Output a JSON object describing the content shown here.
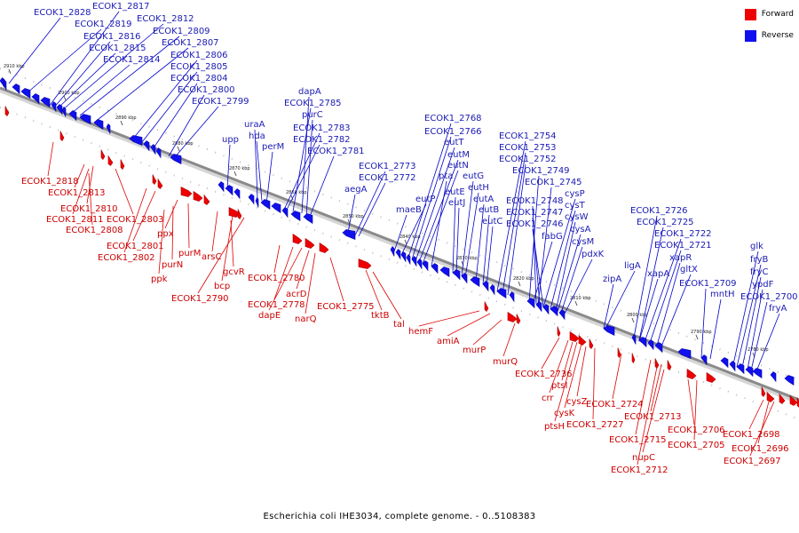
{
  "legend": {
    "forward_label": "Forward",
    "reverse_label": "Reverse",
    "forward_color": "#ee0000",
    "reverse_color": "#1010ee"
  },
  "caption": "Escherichia coli IHE3034, complete genome. - 0..5108383",
  "axis": {
    "backbone_color": "#8a8a8a",
    "ticks": [
      "2910 kbp",
      "2900 kbp",
      "2890 kbp",
      "2880 kbp",
      "2870 kbp",
      "2860 kbp",
      "2850 kbp",
      "2840 kbp",
      "2830 kbp",
      "2820 kbp",
      "2810 kbp",
      "2800 kbp",
      "2790 kbp",
      "2780 kbp"
    ]
  },
  "reverse_genes": [
    "ECOK1_2828",
    "ECOK1_2817",
    "ECOK1_2819",
    "ECOK1_2812",
    "ECOK1_2816",
    "ECOK1_2809",
    "ECOK1_2815",
    "ECOK1_2807",
    "ECOK1_2814",
    "ECOK1_2806",
    "ECOK1_2805",
    "ECOK1_2804",
    "ECOK1_2800",
    "ECOK1_2799",
    "dapA",
    "ECOK1_2785",
    "purC",
    "uraA",
    "hda",
    "ECOK1_2783",
    "upp",
    "ECOK1_2782",
    "perM",
    "ECOK1_2781",
    "ECOK1_2768",
    "ECOK1_2766",
    "eutT",
    "eutM",
    "eutN",
    "ECOK1_2773",
    "pta",
    "eutG",
    "ECOK1_2772",
    "eutH",
    "eutE",
    "eutP",
    "eutJ",
    "eutA",
    "aegA",
    "maeB",
    "eutB",
    "eutC",
    "ECOK1_2754",
    "ECOK1_2753",
    "ECOK1_2752",
    "ECOK1_2749",
    "ECOK1_2745",
    "ECOK1_2748",
    "cysP",
    "ECOK1_2747",
    "cysT",
    "ECOK1_2746",
    "cysW",
    "fabG",
    "cysA",
    "cysM",
    "pdxK",
    "ECOK1_2726",
    "ECOK1_2725",
    "ECOK1_2722",
    "ECOK1_2721",
    "ligA",
    "xapR",
    "xapA",
    "gltX",
    "zipA",
    "ECOK1_2709",
    "mntH",
    "glk",
    "fryB",
    "fryC",
    "ypdF",
    "ECOK1_2700",
    "fryA"
  ],
  "forward_genes": [
    "ECOK1_2818",
    "ECOK1_2813",
    "ECOK1_2810",
    "ECOK1_2811",
    "ECOK1_2803",
    "ECOK1_2808",
    "ppx",
    "ECOK1_2801",
    "ECOK1_2802",
    "purM",
    "purN",
    "arsC",
    "ppk",
    "gcvR",
    "bcp",
    "ECOK1_2790",
    "ECOK1_2780",
    "ECOK1_2778",
    "acrD",
    "dapE",
    "narQ",
    "ECOK1_2775",
    "tktB",
    "tal",
    "hemF",
    "amiA",
    "murP",
    "murQ",
    "ECOK1_2736",
    "ptsI",
    "crr",
    "cysZ",
    "cysK",
    "ptsH",
    "ECOK1_2724",
    "ECOK1_2727",
    "ECOK1_2713",
    "ECOK1_2715",
    "ECOK1_2706",
    "nupC",
    "ECOK1_2705",
    "ECOK1_2712",
    "ECOK1_2698",
    "ECOK1_2696",
    "ECOK1_2697"
  ]
}
